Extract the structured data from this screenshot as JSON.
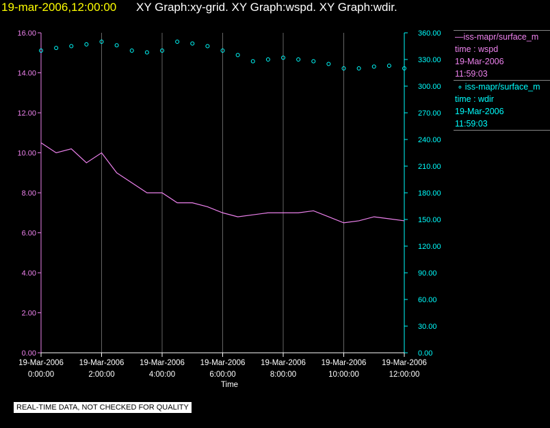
{
  "header": {
    "time_label": "19-mar-2006,12:00:00",
    "titles": "XY Graph:xy-grid.  XY Graph:wspd.  XY Graph:wdir."
  },
  "colors": {
    "background": "#000000",
    "wspd": "#ee82ee",
    "wdir": "#00ffff",
    "grid": "#aaaaaa",
    "axis_text": "#ffffff"
  },
  "legend": {
    "entries": [
      {
        "series": "wspd",
        "name": "iss-mapr/surface_m",
        "field": "time : wspd",
        "date": "19-Mar-2006",
        "time": "11:59:03"
      },
      {
        "series": "wdir",
        "name": "iss-mapr/surface_m",
        "field": "time : wdir",
        "date": "19-Mar-2006",
        "time": "11:59:03"
      }
    ]
  },
  "footer": {
    "notice": "REAL-TIME DATA, NOT CHECKED FOR QUALITY"
  },
  "chart_data": {
    "type": "line",
    "xlabel": "Time",
    "x_ticks": [
      {
        "date": "19-Mar-2006",
        "time": "0:00:00"
      },
      {
        "date": "19-Mar-2006",
        "time": "2:00:00"
      },
      {
        "date": "19-Mar-2006",
        "time": "4:00:00"
      },
      {
        "date": "19-Mar-2006",
        "time": "6:00:00"
      },
      {
        "date": "19-Mar-2006",
        "time": "8:00:00"
      },
      {
        "date": "19-Mar-2006",
        "time": "10:00:00"
      },
      {
        "date": "19-Mar-2006",
        "time": "12:00:00"
      }
    ],
    "xlim_hours": [
      0,
      12
    ],
    "grid": "vertical",
    "y_left": {
      "ticks": [
        "0.00",
        "2.00",
        "4.00",
        "6.00",
        "8.00",
        "10.00",
        "12.00",
        "14.00",
        "16.00"
      ],
      "ylim": [
        0,
        16
      ]
    },
    "y_right": {
      "ticks": [
        "0.00",
        "30.00",
        "60.00",
        "90.00",
        "120.00",
        "150.00",
        "180.00",
        "210.00",
        "240.00",
        "270.00",
        "300.00",
        "330.00",
        "360.00"
      ],
      "ylim": [
        0,
        360
      ]
    },
    "series": [
      {
        "name": "wspd",
        "axis": "left",
        "style": "line",
        "x_hours": [
          0,
          0.5,
          1,
          1.5,
          2,
          2.5,
          3,
          3.5,
          4,
          4.5,
          5,
          5.5,
          6,
          6.5,
          7,
          7.5,
          8,
          8.5,
          9,
          9.5,
          10,
          10.5,
          11,
          11.5,
          12
        ],
        "values": [
          10.5,
          10.0,
          10.2,
          9.5,
          10.0,
          9.0,
          8.5,
          8.0,
          8.0,
          7.5,
          7.5,
          7.3,
          7.0,
          6.8,
          6.9,
          7.0,
          7.0,
          7.0,
          7.1,
          6.8,
          6.5,
          6.6,
          6.8,
          6.7,
          6.6
        ]
      },
      {
        "name": "wdir",
        "axis": "right",
        "style": "markers",
        "x_hours": [
          0,
          0.5,
          1,
          1.5,
          2,
          2.5,
          3,
          3.5,
          4,
          4.5,
          5,
          5.5,
          6,
          6.5,
          7,
          7.5,
          8,
          8.5,
          9,
          9.5,
          10,
          10.5,
          11,
          11.5,
          12
        ],
        "values": [
          340,
          343,
          345,
          347,
          350,
          346,
          340,
          338,
          340,
          350,
          348,
          345,
          340,
          335,
          328,
          330,
          332,
          330,
          328,
          325,
          320,
          320,
          322,
          323,
          320
        ]
      }
    ]
  }
}
